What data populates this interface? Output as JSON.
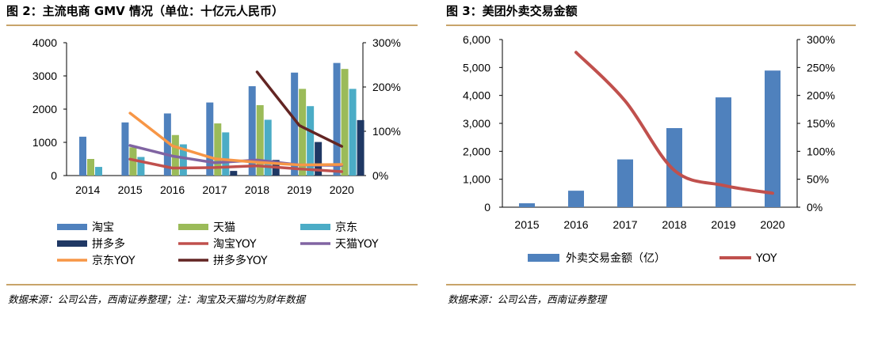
{
  "left": {
    "title": "图 2：主流电商 GMV 情况（单位：十亿元人民币）",
    "source": "数据来源：公司公告，西南证券整理；注：淘宝及天猫均为财年数据",
    "chart_data": {
      "type": "bar",
      "categories": [
        "2014",
        "2015",
        "2016",
        "2017",
        "2018",
        "2019",
        "2020"
      ],
      "ylim": [
        0,
        4000
      ],
      "y_ticks": [
        "0",
        "1000",
        "2000",
        "3000",
        "4000"
      ],
      "y2lim": [
        0,
        3.0
      ],
      "y2_ticks": [
        "0%",
        "100%",
        "200%",
        "300%"
      ],
      "bar_series": [
        {
          "name": "淘宝",
          "color": "#4f81bd",
          "values": [
            1170,
            1600,
            1870,
            2200,
            2690,
            3100,
            3390
          ]
        },
        {
          "name": "天猫",
          "color": "#9bbb59",
          "values": [
            500,
            850,
            1220,
            1570,
            2120,
            2610,
            3210
          ]
        },
        {
          "name": "京东",
          "color": "#4bacc6",
          "values": [
            260,
            560,
            940,
            1300,
            1680,
            2090,
            2610
          ]
        },
        {
          "name": "拼多多",
          "color": "#1f3864",
          "values": [
            null,
            null,
            null,
            140,
            470,
            1010,
            1670
          ]
        }
      ],
      "line_series": [
        {
          "name": "淘宝YOY",
          "color": "#c0504d",
          "values": [
            null,
            0.37,
            0.17,
            0.18,
            0.22,
            0.15,
            0.09
          ]
        },
        {
          "name": "天猫YOY",
          "color": "#8064a2",
          "values": [
            null,
            0.68,
            0.44,
            0.29,
            0.35,
            0.24,
            0.23
          ]
        },
        {
          "name": "京东YOY",
          "color": "#f79646",
          "values": [
            null,
            1.41,
            0.67,
            0.38,
            0.3,
            0.24,
            0.25
          ]
        },
        {
          "name": "拼多多YOY",
          "color": "#632523",
          "values": [
            null,
            null,
            null,
            null,
            2.34,
            1.13,
            0.66
          ]
        }
      ],
      "legend_position": "bottom"
    }
  },
  "right": {
    "title": "图 3：美团外卖交易金额",
    "source": "数据来源：公司公告，西南证券整理",
    "chart_data": {
      "type": "bar",
      "categories": [
        "2015",
        "2016",
        "2017",
        "2018",
        "2019",
        "2020"
      ],
      "ylim": [
        0,
        6000
      ],
      "y_ticks": [
        "0",
        "1,000",
        "2,000",
        "3,000",
        "4,000",
        "5,000",
        "6,000"
      ],
      "y2lim": [
        0,
        3.0
      ],
      "y2_ticks": [
        "0%",
        "50%",
        "100%",
        "150%",
        "200%",
        "250%",
        "300%"
      ],
      "bar_series": [
        {
          "name": "外卖交易金额（亿）",
          "color": "#4f81bd",
          "values": [
            140,
            590,
            1710,
            2830,
            3930,
            4890
          ]
        }
      ],
      "line_series": [
        {
          "name": "YOY",
          "color": "#c0504d",
          "values": [
            null,
            2.77,
            1.9,
            0.66,
            0.39,
            0.25
          ]
        }
      ],
      "legend_position": "bottom"
    }
  }
}
